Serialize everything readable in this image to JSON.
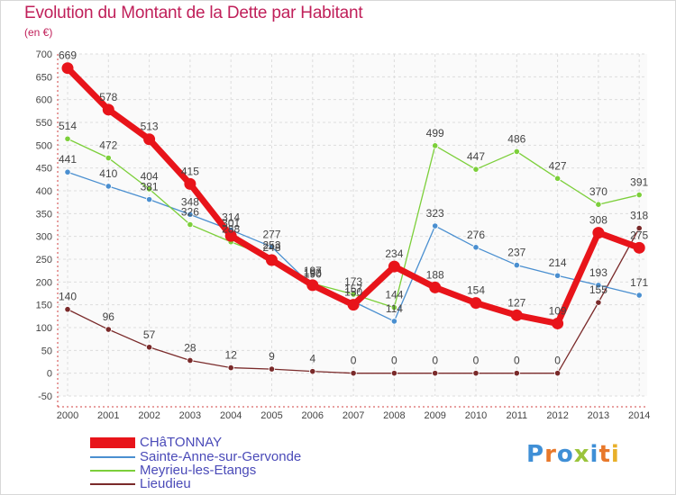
{
  "title": "Evolution du Montant de la Dette par Habitant",
  "subtitle": "(en €)",
  "logo": {
    "text": "Proxiti",
    "colors": [
      "#3f8fd6",
      "#e8782a",
      "#3f8fd6",
      "#9ac43b",
      "#3f8fd6",
      "#e8782a",
      "#e8b02a"
    ]
  },
  "chart_data": {
    "type": "line",
    "x": [
      "2000",
      "2001",
      "2002",
      "2003",
      "2004",
      "2005",
      "2006",
      "2007",
      "2008",
      "2009",
      "2010",
      "2011",
      "2012",
      "2013",
      "2014"
    ],
    "ylim": [
      -50,
      700
    ],
    "yticks": [
      -50,
      0,
      50,
      100,
      150,
      200,
      250,
      300,
      350,
      400,
      450,
      500,
      550,
      600,
      650,
      700
    ],
    "grid": true,
    "legend_position": "bottom-left",
    "series": [
      {
        "name": "CHâTONNAY",
        "color": "#e8141a",
        "values": [
          669,
          578,
          513,
          415,
          301,
          248,
          193,
          150,
          234,
          188,
          154,
          127,
          109,
          308,
          275
        ],
        "labels": [
          "669",
          "578",
          "513",
          "415",
          "301",
          "248",
          "193",
          "150",
          "234",
          "188",
          "154",
          "127",
          "109",
          "308",
          "275"
        ]
      },
      {
        "name": "Sainte-Anne-sur-Gervonde",
        "color": "#4a8fd0",
        "values": [
          441,
          410,
          381,
          348,
          314,
          277,
          190,
          157,
          114,
          323,
          276,
          237,
          214,
          193,
          171
        ],
        "labels": [
          "441",
          "410",
          "381",
          "348",
          "314",
          "277",
          "190",
          "157",
          "114",
          "323",
          "276",
          "237",
          "214",
          "193",
          "171"
        ]
      },
      {
        "name": "Meyrieu-les-Etangs",
        "color": "#7ccf3a",
        "values": [
          514,
          472,
          404,
          326,
          288,
          253,
          197,
          173,
          144,
          499,
          447,
          486,
          427,
          370,
          391
        ],
        "labels": [
          "514",
          "472",
          "404",
          "326",
          "288",
          "253",
          "197",
          "173",
          "144",
          "499",
          "447",
          "486",
          "427",
          "370",
          "391"
        ]
      },
      {
        "name": "Lieudieu",
        "color": "#7a2a2a",
        "values": [
          140,
          96,
          57,
          28,
          12,
          9,
          4,
          0,
          0,
          0,
          0,
          0,
          0,
          155,
          318
        ],
        "labels": [
          "140",
          "96",
          "57",
          "28",
          "12",
          "9",
          "4",
          "0",
          "0",
          "0",
          "0",
          "0",
          "0",
          "155",
          "318"
        ]
      }
    ]
  }
}
